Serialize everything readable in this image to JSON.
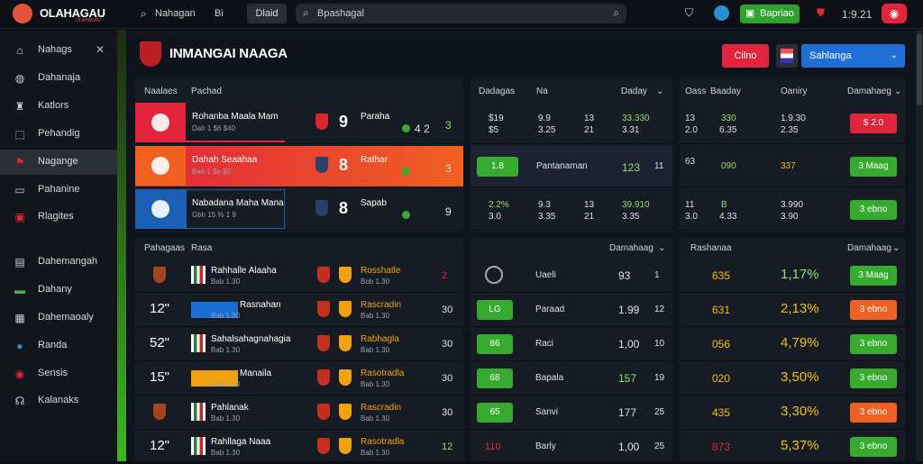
{
  "topbar": {
    "logo_text": "OLAHAGAU",
    "logo_sub": "OLAHAGAU",
    "nav1": "Nahagan",
    "nav2": "Bi",
    "pill": "Dlaid",
    "search_text": "Bpashagal",
    "green_btn": "Bapriao",
    "time": "1:9.21"
  },
  "sidebar": {
    "items": [
      {
        "label": "Nahags",
        "icon": "home-icon"
      },
      {
        "label": "Dahanaja",
        "icon": "globe-icon"
      },
      {
        "label": "Katlors",
        "icon": "trophy-icon"
      },
      {
        "label": "Pehandig",
        "icon": "tag-icon"
      },
      {
        "label": "Nagange",
        "icon": "flag-icon"
      },
      {
        "label": "Pahanine",
        "icon": "monitor-icon"
      },
      {
        "label": "Rlagites",
        "icon": "gift-icon"
      },
      {
        "label": "Dahemangah",
        "icon": "document-icon"
      },
      {
        "label": "Dahany",
        "icon": "card-icon"
      },
      {
        "label": "Dahemaoaly",
        "icon": "calendar-icon"
      },
      {
        "label": "Randa",
        "icon": "ball-icon"
      },
      {
        "label": "Sensis",
        "icon": "chip-icon"
      },
      {
        "label": "Kalanaks",
        "icon": "headset-icon"
      }
    ]
  },
  "main": {
    "title": "INMANGAI NAAGA",
    "btn_red": "Cilno",
    "btn_blue": "Sahlanga"
  },
  "live": {
    "headers": [
      "Naalaes",
      "Pachad"
    ],
    "rows": [
      {
        "team1": "Rohanba Maala Mam",
        "sub": "Dah 1 $6 $40",
        "score": "9",
        "opp": "Paraha",
        "odds": "4 2",
        "side": "3"
      },
      {
        "team1": "Dahah Seaahaa",
        "sub": "Bae 1 $e $0",
        "score": "8",
        "opp": "Rathar",
        "odds": "",
        "side": "3"
      },
      {
        "team1": "Nabadana Maha Mana",
        "sub": "Gbh 15 % 1 9",
        "score": "8",
        "opp": "Sapab",
        "odds": "",
        "side": "9"
      }
    ]
  },
  "mid_top": {
    "headers": [
      "Dadagas",
      "Na",
      "Daday"
    ],
    "rows": [
      {
        "a": "$19",
        "b": "$5",
        "c": "9.9",
        "d": "3.25",
        "e": "13",
        "f": "21",
        "g": "33.330",
        "h": "3.31"
      },
      {
        "badge": "1.8",
        "label": "Pantanaman",
        "v1": "123",
        "v2": "11"
      },
      {
        "a": "2.2%",
        "b": "3.0",
        "c": "9.3",
        "d": "3.35",
        "e": "13",
        "f": "21",
        "g": "39.910",
        "h": "3.35"
      }
    ]
  },
  "right_top": {
    "headers": [
      "Oass",
      "Baaday",
      "Oaniry",
      "Damahaeg"
    ],
    "rows": [
      {
        "a": "13",
        "b": "2.0",
        "c": "330",
        "d": "6.35",
        "e": "1.9.30",
        "f": "2.35",
        "badge": "$ 2.0",
        "color": "r"
      },
      {
        "a": "63",
        "c": "090",
        "e": "337",
        "badge": "3 Maag",
        "color": "g"
      },
      {
        "a": "11",
        "b": "3.0",
        "c": "B",
        "d": "4.33",
        "e": "3.990",
        "f": "3.90",
        "badge": "3 ebno",
        "color": "g"
      }
    ]
  },
  "upcoming": {
    "headers": [
      "Pahagaas",
      "Rasa"
    ],
    "rows": [
      {
        "time": "",
        "team1": "Rahhalle Alaaha",
        "sub": "Bab 1.30",
        "opp": "Rosshatle",
        "osub": "Bob 1.30",
        "num": "2"
      },
      {
        "time": "12\"",
        "team1": "Rasnahan",
        "sub": "Bab 1.30",
        "opp": "Rascradin",
        "osub": "Bab 1.30",
        "num": "30"
      },
      {
        "time": "52\"",
        "team1": "Sahalsahagnahagia",
        "sub": "Bab 1.30",
        "opp": "Rabhagla",
        "osub": "Bab 1.30",
        "num": "30"
      },
      {
        "time": "15\"",
        "team1": "Manaila",
        "sub": "Bab 1.30",
        "opp": "Rasotradla",
        "osub": "Bab 1.30",
        "num": "30"
      },
      {
        "time": "",
        "team1": "Pahlanak",
        "sub": "Bab 1.30",
        "opp": "Rascradin",
        "osub": "Bab 1.30",
        "num": "30"
      },
      {
        "time": "12\"",
        "team1": "Rahllaga Naaa",
        "sub": "Bab 1.30",
        "opp": "Rasotradla",
        "osub": "Bab 1.30",
        "num": "12"
      }
    ]
  },
  "mid_bot": {
    "header": "Damahaag",
    "rows": [
      {
        "badge": "",
        "label": "Uaeli",
        "v1": "93",
        "v2": "1"
      },
      {
        "badge": "LG",
        "label": "Paraad",
        "v1": "1.99",
        "v2": "12"
      },
      {
        "badge": "86",
        "label": "Raci",
        "v1": "1,00",
        "v2": "10"
      },
      {
        "badge": "68",
        "label": "Bapala",
        "v1": "157",
        "v2": "19"
      },
      {
        "badge": "65",
        "label": "Sanvi",
        "v1": "177",
        "v2": "25"
      },
      {
        "badge": "110",
        "label": "Barly",
        "v1": "1,00",
        "v2": "25"
      }
    ]
  },
  "right_bot": {
    "headers": [
      "Rashanaa",
      "Damahaag"
    ],
    "rows": [
      {
        "v": "635",
        "pct": "1,17%",
        "badge": "3 Maag",
        "color": "g"
      },
      {
        "v": "631",
        "pct": "2,13%",
        "badge": "3 ebno",
        "color": "o"
      },
      {
        "v": "056",
        "pct": "4,79%",
        "badge": "3 ebno",
        "color": "g"
      },
      {
        "v": "020",
        "pct": "3,50%",
        "badge": "3 ebno",
        "color": "g"
      },
      {
        "v": "435",
        "pct": "3,30%",
        "badge": "3 ebno",
        "color": "o"
      },
      {
        "v": "873",
        "pct": "5,37%",
        "badge": "3 ebno",
        "color": "g"
      }
    ]
  }
}
